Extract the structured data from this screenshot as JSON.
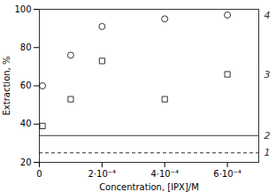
{
  "chart_data": {
    "type": "scatter",
    "xlabel": "Concentration, [IPX]/M",
    "ylabel": "Extraction, %",
    "x": [
      1e-05,
      0.0001,
      0.0002,
      0.0004,
      0.0006
    ],
    "series": [
      {
        "name": "4",
        "color": "#333333",
        "marker": "circle",
        "values": [
          60,
          76,
          91,
          95,
          97
        ]
      },
      {
        "name": "3",
        "color": "#333333",
        "marker": "square",
        "values": [
          39,
          53,
          73,
          53,
          66
        ]
      }
    ],
    "reference_lines": [
      {
        "name": "2",
        "value": 34,
        "color": "#333333",
        "line_style": "solid"
      },
      {
        "name": "1",
        "value": 25,
        "color": "#333333",
        "line_style": "dashed"
      }
    ],
    "xlim": [
      0,
      0.0007
    ],
    "ylim": [
      20,
      100
    ],
    "xticks": [
      0,
      {
        "value": 0.0002,
        "label": "2·10⁻⁴"
      },
      {
        "value": 0.0004,
        "label": "4·10⁻⁴"
      },
      {
        "value": 0.0006,
        "label": "6·10⁻⁴"
      }
    ],
    "yticks": [
      20,
      40,
      60,
      80,
      100
    ],
    "grid": false
  }
}
